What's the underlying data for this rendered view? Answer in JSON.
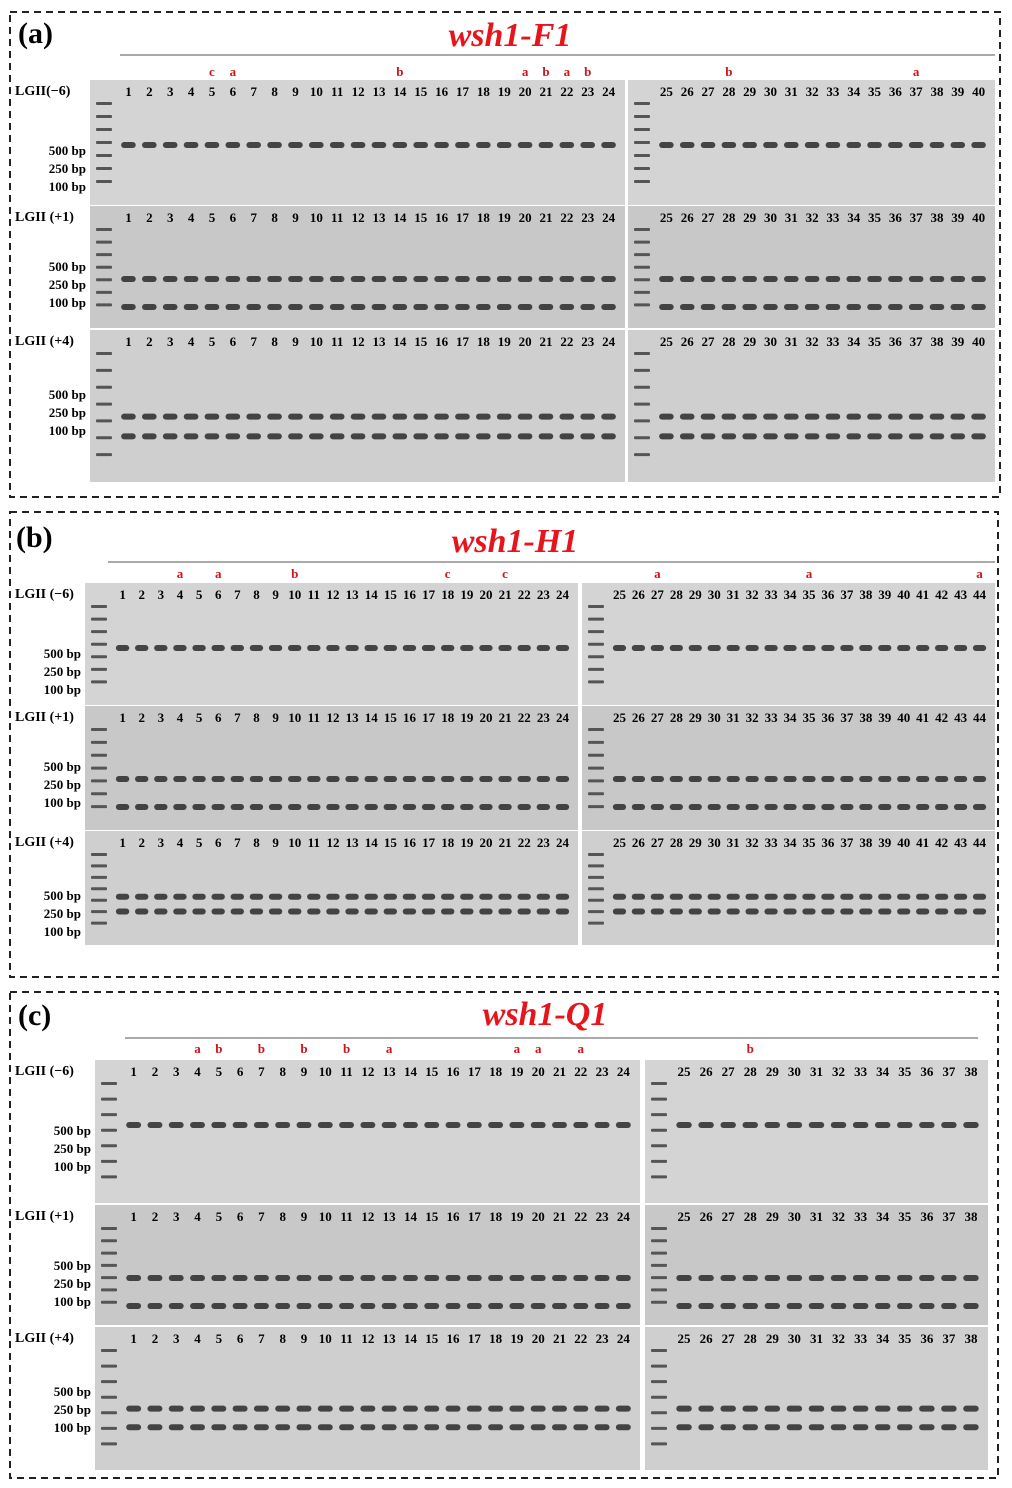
{
  "panels": [
    {
      "label": "(a)",
      "title": "wsh1-F1",
      "lanes_left": [
        1,
        2,
        3,
        4,
        5,
        6,
        7,
        8,
        9,
        10,
        11,
        12,
        13,
        14,
        15,
        16,
        17,
        18,
        19,
        20,
        21,
        22,
        23,
        24
      ],
      "lanes_right": [
        25,
        26,
        27,
        28,
        29,
        30,
        31,
        32,
        33,
        34,
        35,
        36,
        37,
        38,
        39,
        40
      ],
      "annotations": [
        {
          "lane": 5,
          "mark": "c"
        },
        {
          "lane": 6,
          "mark": "a"
        },
        {
          "lane": 14,
          "mark": "b"
        },
        {
          "lane": 20,
          "mark": "a"
        },
        {
          "lane": 21,
          "mark": "b"
        },
        {
          "lane": 22,
          "mark": "a"
        },
        {
          "lane": 23,
          "mark": "b"
        },
        {
          "lane": 28,
          "mark": "b"
        },
        {
          "lane": 37,
          "mark": "a"
        }
      ],
      "rows": [
        {
          "name": "LGII(−6)",
          "sizes": [
            "500 bp",
            "250 bp",
            "100 bp"
          ]
        },
        {
          "name": "LGII (+1)",
          "sizes": [
            "500 bp",
            "250 bp",
            "100 bp"
          ]
        },
        {
          "name": "LGII (+4)",
          "sizes": [
            "500 bp",
            "250 bp",
            "100 bp"
          ]
        }
      ]
    },
    {
      "label": "(b)",
      "title": "wsh1-H1",
      "lanes_left": [
        1,
        2,
        3,
        4,
        5,
        6,
        7,
        8,
        9,
        10,
        11,
        12,
        13,
        14,
        15,
        16,
        17,
        18,
        19,
        20,
        21,
        22,
        23,
        24
      ],
      "lanes_right": [
        25,
        26,
        27,
        28,
        29,
        30,
        31,
        32,
        33,
        34,
        35,
        36,
        37,
        38,
        39,
        40,
        41,
        42,
        43,
        44
      ],
      "annotations": [
        {
          "lane": 4,
          "mark": "a"
        },
        {
          "lane": 6,
          "mark": "a"
        },
        {
          "lane": 10,
          "mark": "b"
        },
        {
          "lane": 18,
          "mark": "c"
        },
        {
          "lane": 21,
          "mark": "c"
        },
        {
          "lane": 27,
          "mark": "a"
        },
        {
          "lane": 35,
          "mark": "a"
        },
        {
          "lane": 44,
          "mark": "a"
        }
      ],
      "rows": [
        {
          "name": "LGII (−6)",
          "sizes": [
            "500 bp",
            "250 bp",
            "100 bp"
          ]
        },
        {
          "name": "LGII (+1)",
          "sizes": [
            "500 bp",
            "250 bp",
            "100 bp"
          ]
        },
        {
          "name": "LGII (+4)",
          "sizes": [
            "500 bp",
            "250 bp",
            "100 bp"
          ]
        }
      ]
    },
    {
      "label": "(c)",
      "title": "wsh1-Q1",
      "lanes_left": [
        1,
        2,
        3,
        4,
        5,
        6,
        7,
        8,
        9,
        10,
        11,
        12,
        13,
        14,
        15,
        16,
        17,
        18,
        19,
        20,
        21,
        22,
        23,
        24
      ],
      "lanes_right": [
        25,
        26,
        27,
        28,
        29,
        30,
        31,
        32,
        33,
        34,
        35,
        36,
        37,
        38
      ],
      "annotations": [
        {
          "lane": 4,
          "mark": "a"
        },
        {
          "lane": 5,
          "mark": "b"
        },
        {
          "lane": 7,
          "mark": "b"
        },
        {
          "lane": 9,
          "mark": "b"
        },
        {
          "lane": 11,
          "mark": "b"
        },
        {
          "lane": 13,
          "mark": "a"
        },
        {
          "lane": 19,
          "mark": "a"
        },
        {
          "lane": 20,
          "mark": "a"
        },
        {
          "lane": 22,
          "mark": "a"
        },
        {
          "lane": 28,
          "mark": "b"
        }
      ],
      "rows": [
        {
          "name": "LGII (−6)",
          "sizes": [
            "500 bp",
            "250 bp",
            "100 bp"
          ]
        },
        {
          "name": "LGII (+1)",
          "sizes": [
            "500 bp",
            "250 bp",
            "100 bp"
          ]
        },
        {
          "name": "LGII (+4)",
          "sizes": [
            "500 bp",
            "250 bp",
            "100 bp"
          ]
        }
      ]
    }
  ]
}
